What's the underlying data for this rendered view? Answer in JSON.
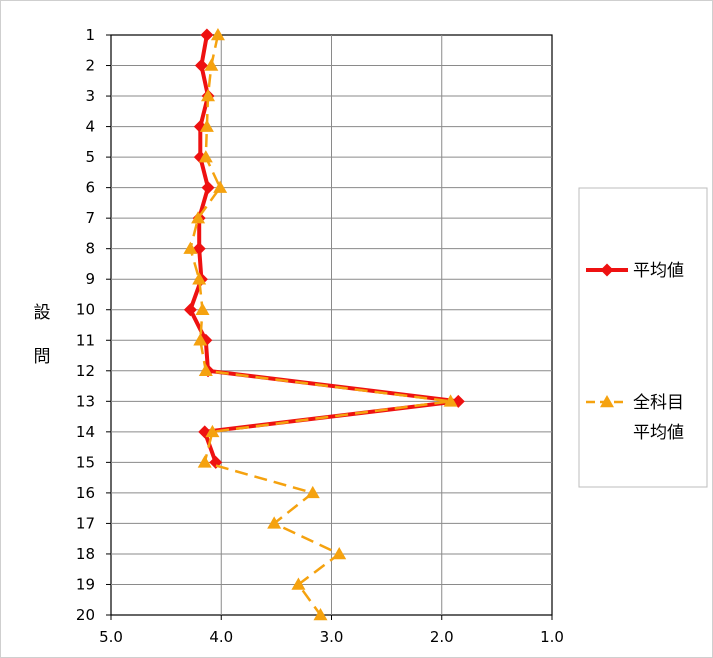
{
  "chart_data": {
    "type": "line",
    "orientation": "horizontal-value-axis",
    "title": "",
    "ylabel": "設問",
    "xlabel": "",
    "x_axis": {
      "min": 1.0,
      "max": 5.0,
      "reversed": true,
      "step": 1.0,
      "tick_labels": [
        "5.0",
        "4.0",
        "3.0",
        "2.0",
        "1.0"
      ]
    },
    "categories": [
      "1",
      "2",
      "3",
      "4",
      "5",
      "6",
      "7",
      "8",
      "9",
      "10",
      "11",
      "12",
      "13",
      "14",
      "15",
      "16",
      "17",
      "18",
      "19",
      "20"
    ],
    "grid": true,
    "legend_position": "right",
    "series": [
      {
        "name": "平均値",
        "color": "#ee1111",
        "marker": "diamond",
        "line_style": "solid",
        "values": [
          4.13,
          4.18,
          4.12,
          4.19,
          4.19,
          4.12,
          4.2,
          4.2,
          4.18,
          4.28,
          4.14,
          4.12,
          1.85,
          4.15,
          4.05,
          null,
          null,
          null,
          null,
          null
        ]
      },
      {
        "name": "全科目平均値",
        "legend_lines": [
          "全科目",
          "平均値"
        ],
        "color": "#f5a20f",
        "marker": "triangle",
        "line_style": "dashed",
        "values": [
          4.03,
          4.09,
          4.12,
          4.13,
          4.14,
          4.01,
          4.21,
          4.28,
          4.2,
          4.17,
          4.19,
          4.14,
          1.92,
          4.08,
          4.15,
          3.17,
          3.52,
          2.93,
          3.3,
          3.1
        ]
      }
    ]
  }
}
